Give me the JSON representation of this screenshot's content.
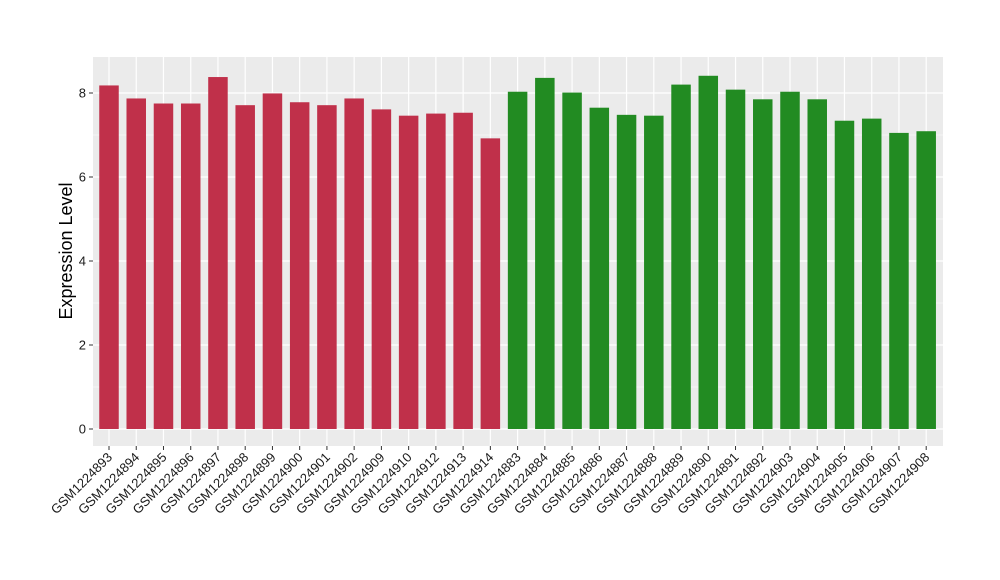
{
  "chart_data": {
    "type": "bar",
    "title": "",
    "xlabel": "",
    "ylabel": "Expression Level",
    "ylim": [
      0,
      8.8
    ],
    "yticks": [
      0,
      2,
      4,
      6,
      8
    ],
    "grid": true,
    "legend": "none",
    "colors": {
      "group1": "#c0304a",
      "group2": "#228b22",
      "panel": "#ebebeb",
      "grid": "#ffffff"
    },
    "categories": [
      "GSM1224893",
      "GSM1224894",
      "GSM1224895",
      "GSM1224896",
      "GSM1224897",
      "GSM1224898",
      "GSM1224899",
      "GSM1224900",
      "GSM1224901",
      "GSM1224902",
      "GSM1224909",
      "GSM1224910",
      "GSM1224912",
      "GSM1224913",
      "GSM1224914",
      "GSM1224883",
      "GSM1224884",
      "GSM1224885",
      "GSM1224886",
      "GSM1224887",
      "GSM1224888",
      "GSM1224889",
      "GSM1224890",
      "GSM1224891",
      "GSM1224892",
      "GSM1224903",
      "GSM1224904",
      "GSM1224905",
      "GSM1224906",
      "GSM1224907",
      "GSM1224908"
    ],
    "values": [
      8.18,
      7.87,
      7.75,
      7.75,
      8.38,
      7.71,
      7.99,
      7.78,
      7.71,
      7.87,
      7.61,
      7.46,
      7.51,
      7.53,
      6.92,
      8.03,
      8.36,
      8.01,
      7.65,
      7.48,
      7.46,
      8.2,
      8.41,
      8.08,
      7.85,
      8.03,
      7.85,
      7.34,
      7.39,
      7.05,
      7.09
    ],
    "groups": [
      "group1",
      "group1",
      "group1",
      "group1",
      "group1",
      "group1",
      "group1",
      "group1",
      "group1",
      "group1",
      "group1",
      "group1",
      "group1",
      "group1",
      "group1",
      "group2",
      "group2",
      "group2",
      "group2",
      "group2",
      "group2",
      "group2",
      "group2",
      "group2",
      "group2",
      "group2",
      "group2",
      "group2",
      "group2",
      "group2",
      "group2"
    ]
  }
}
